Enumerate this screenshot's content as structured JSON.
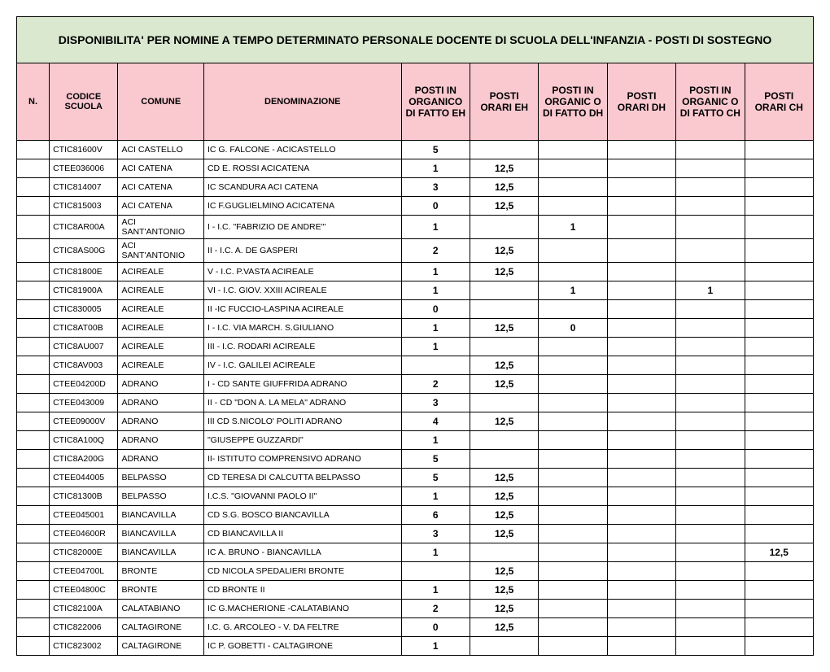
{
  "title": "DISPONIBILITA' PER NOMINE A TEMPO DETERMINATO PERSONALE DOCENTE DI SCUOLA DELL'INFANZIA - POSTI DI SOSTEGNO",
  "columns": [
    "N.",
    "CODICE SCUOLA",
    "COMUNE",
    "DENOMINAZIONE",
    "POSTI IN ORGANICO DI FATTO EH",
    "POSTI ORARI EH",
    "POSTI IN ORGANIC O DI FATTO DH",
    "POSTI ORARI DH",
    "POSTI IN ORGANIC O DI FATTO CH",
    "POSTI ORARI CH"
  ],
  "rows": [
    {
      "n": "",
      "code": "CTIC81600V",
      "comune": "ACI CASTELLO",
      "denom": "IC G. FALCONE - ACICASTELLO",
      "v": [
        "5",
        "",
        "",
        "",
        "",
        ""
      ]
    },
    {
      "n": "",
      "code": "CTEE036006",
      "comune": "ACI CATENA",
      "denom": "CD  E. ROSSI   ACICATENA",
      "v": [
        "1",
        "12,5",
        "",
        "",
        "",
        ""
      ]
    },
    {
      "n": "",
      "code": "CTIC814007",
      "comune": "ACI CATENA",
      "denom": "IC SCANDURA   ACI CATENA",
      "v": [
        "3",
        "12,5",
        "",
        "",
        "",
        ""
      ]
    },
    {
      "n": "",
      "code": "CTIC815003",
      "comune": "ACI CATENA",
      "denom": "IC F.GUGLIELMINO ACICATENA",
      "v": [
        "0",
        "12,5",
        "",
        "",
        "",
        ""
      ]
    },
    {
      "n": "",
      "code": "CTIC8AR00A",
      "comune": "ACI SANT'ANTONIO",
      "denom": "I - I.C.  \"FABRIZIO DE ANDRE'\"",
      "v": [
        "1",
        "",
        "1",
        "",
        "",
        ""
      ]
    },
    {
      "n": "",
      "code": "CTIC8AS00G",
      "comune": "ACI SANT'ANTONIO",
      "denom": "II - I.C.  A. DE GASPERI",
      "v": [
        "2",
        "12,5",
        "",
        "",
        "",
        ""
      ]
    },
    {
      "n": "",
      "code": "CTIC81800E",
      "comune": "ACIREALE",
      "denom": "V - I.C.  P.VASTA  ACIREALE",
      "v": [
        "1",
        "12,5",
        "",
        "",
        "",
        ""
      ]
    },
    {
      "n": "",
      "code": "CTIC81900A",
      "comune": "ACIREALE",
      "denom": "VI - I.C.  GIOV. XXIII ACIREALE",
      "v": [
        "1",
        "",
        "1",
        "",
        "1",
        ""
      ]
    },
    {
      "n": "",
      "code": "CTIC830005",
      "comune": "ACIREALE",
      "denom": "II -IC  FUCCIO-LASPINA ACIREALE",
      "v": [
        "0",
        "",
        "",
        "",
        "",
        ""
      ]
    },
    {
      "n": "",
      "code": "CTIC8AT00B",
      "comune": "ACIREALE",
      "denom": "I - I.C. VIA MARCH.  S.GIULIANO",
      "v": [
        "1",
        "12,5",
        "0",
        "",
        "",
        ""
      ]
    },
    {
      "n": "",
      "code": "CTIC8AU007",
      "comune": "ACIREALE",
      "denom": "III - I.C. RODARI ACIREALE",
      "v": [
        "1",
        "",
        "",
        "",
        "",
        ""
      ]
    },
    {
      "n": "",
      "code": "CTIC8AV003",
      "comune": "ACIREALE",
      "denom": "IV - I.C.  GALILEI ACIREALE",
      "v": [
        "",
        "12,5",
        "",
        "",
        "",
        ""
      ]
    },
    {
      "n": "",
      "code": "CTEE04200D",
      "comune": "ADRANO",
      "denom": "I - CD SANTE GIUFFRIDA ADRANO",
      "v": [
        "2",
        "12,5",
        "",
        "",
        "",
        ""
      ]
    },
    {
      "n": "",
      "code": "CTEE043009",
      "comune": "ADRANO",
      "denom": "II - CD \"DON A. LA MELA\" ADRANO",
      "v": [
        "3",
        "",
        "",
        "",
        "",
        ""
      ]
    },
    {
      "n": "",
      "code": "CTEE09000V",
      "comune": "ADRANO",
      "denom": "III  CD S.NICOLO' POLITI ADRANO",
      "v": [
        "4",
        "12,5",
        "",
        "",
        "",
        ""
      ]
    },
    {
      "n": "",
      "code": "CTIC8A100Q",
      "comune": "ADRANO",
      "denom": "\"GIUSEPPE GUZZARDI\"",
      "v": [
        "1",
        "",
        "",
        "",
        "",
        ""
      ]
    },
    {
      "n": "",
      "code": "CTIC8A200G",
      "comune": "ADRANO",
      "denom": "II- ISTITUTO COMPRENSIVO ADRANO",
      "v": [
        "5",
        "",
        "",
        "",
        "",
        ""
      ]
    },
    {
      "n": "",
      "code": "CTEE044005",
      "comune": "BELPASSO",
      "denom": "CD TERESA DI CALCUTTA BELPASSO",
      "v": [
        "5",
        "12,5",
        "",
        "",
        "",
        ""
      ]
    },
    {
      "n": "",
      "code": "CTIC81300B",
      "comune": "BELPASSO",
      "denom": "I.C.S. \"GIOVANNI PAOLO II\"",
      "v": [
        "1",
        "12,5",
        "",
        "",
        "",
        ""
      ]
    },
    {
      "n": "",
      "code": "CTEE045001",
      "comune": "BIANCAVILLA",
      "denom": "CD  S.G. BOSCO  BIANCAVILLA",
      "v": [
        "6",
        "12,5",
        "",
        "",
        "",
        ""
      ]
    },
    {
      "n": "",
      "code": "CTEE04600R",
      "comune": "BIANCAVILLA",
      "denom": "CD  BIANCAVILLA  II",
      "v": [
        "3",
        "12,5",
        "",
        "",
        "",
        ""
      ]
    },
    {
      "n": "",
      "code": "CTIC82000E",
      "comune": "BIANCAVILLA",
      "denom": "IC A. BRUNO - BIANCAVILLA",
      "v": [
        "1",
        "",
        "",
        "",
        "",
        "12,5"
      ]
    },
    {
      "n": "",
      "code": "CTEE04700L",
      "comune": "BRONTE",
      "denom": "CD NICOLA SPEDALIERI BRONTE",
      "v": [
        "",
        "12,5",
        "",
        "",
        "",
        ""
      ]
    },
    {
      "n": "",
      "code": "CTEE04800C",
      "comune": "BRONTE",
      "denom": "CD  BRONTE II",
      "v": [
        "1",
        "12,5",
        "",
        "",
        "",
        ""
      ]
    },
    {
      "n": "",
      "code": "CTIC82100A",
      "comune": "CALATABIANO",
      "denom": "IC G.MACHERIONE -CALATABIANO",
      "v": [
        "2",
        "12,5",
        "",
        "",
        "",
        ""
      ]
    },
    {
      "n": "",
      "code": "CTIC822006",
      "comune": "CALTAGIRONE",
      "denom": "I.C. G. ARCOLEO - V. DA  FELTRE",
      "v": [
        "0",
        "12,5",
        "",
        "",
        "",
        ""
      ]
    },
    {
      "n": "",
      "code": "CTIC823002",
      "comune": "CALTAGIRONE",
      "denom": "IC P. GOBETTI - CALTAGIRONE",
      "v": [
        "1",
        "",
        "",
        "",
        "",
        ""
      ]
    }
  ]
}
